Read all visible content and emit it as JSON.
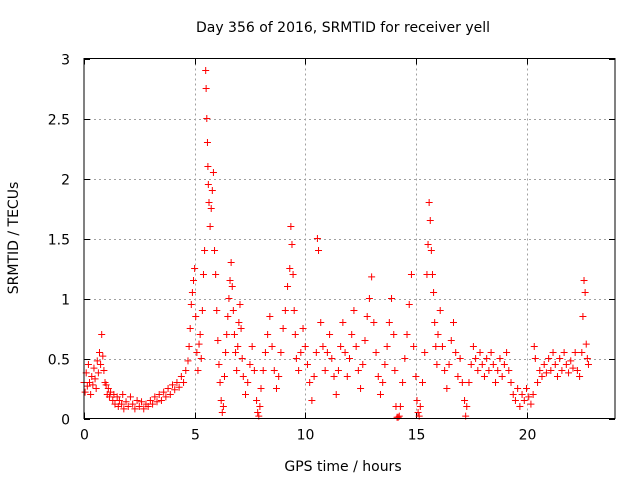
{
  "chart_data": {
    "type": "scatter",
    "title": "Day 356 of 2016, SRMTID for receiver yell",
    "xlabel": "GPS time / hours",
    "ylabel": "SRMTID / TECUs",
    "xlim": [
      0,
      24
    ],
    "ylim": [
      0,
      3
    ],
    "grid": true,
    "marker": "+",
    "color": "#ff0000",
    "x_ticks": [
      0,
      5,
      10,
      15,
      20
    ],
    "x_tick_labels": [
      "0",
      "5",
      "10",
      "15",
      "20"
    ],
    "y_ticks": [
      0,
      0.5,
      1,
      1.5,
      2,
      2.5,
      3
    ],
    "y_tick_labels": [
      "0",
      "0.5",
      "1",
      "1.5",
      "2",
      "2.5",
      "3"
    ],
    "series": [
      {
        "name": "SRMTID",
        "points": [
          [
            0.0,
            0.3
          ],
          [
            0.05,
            0.22
          ],
          [
            0.1,
            0.38
          ],
          [
            0.15,
            0.27
          ],
          [
            0.2,
            0.45
          ],
          [
            0.25,
            0.3
          ],
          [
            0.3,
            0.2
          ],
          [
            0.35,
            0.35
          ],
          [
            0.4,
            0.28
          ],
          [
            0.45,
            0.42
          ],
          [
            0.5,
            0.33
          ],
          [
            0.55,
            0.25
          ],
          [
            0.6,
            0.48
          ],
          [
            0.65,
            0.38
          ],
          [
            0.7,
            0.55
          ],
          [
            0.75,
            0.45
          ],
          [
            0.8,
            0.7
          ],
          [
            0.85,
            0.52
          ],
          [
            0.9,
            0.4
          ],
          [
            0.95,
            0.3
          ],
          [
            1.0,
            0.28
          ],
          [
            1.05,
            0.2
          ],
          [
            1.1,
            0.25
          ],
          [
            1.15,
            0.18
          ],
          [
            1.2,
            0.22
          ],
          [
            1.3,
            0.15
          ],
          [
            1.35,
            0.2
          ],
          [
            1.4,
            0.12
          ],
          [
            1.5,
            0.18
          ],
          [
            1.55,
            0.1
          ],
          [
            1.6,
            0.15
          ],
          [
            1.7,
            0.12
          ],
          [
            1.75,
            0.2
          ],
          [
            1.8,
            0.08
          ],
          [
            1.9,
            0.14
          ],
          [
            2.0,
            0.1
          ],
          [
            2.1,
            0.18
          ],
          [
            2.2,
            0.12
          ],
          [
            2.3,
            0.08
          ],
          [
            2.4,
            0.15
          ],
          [
            2.5,
            0.1
          ],
          [
            2.6,
            0.14
          ],
          [
            2.7,
            0.08
          ],
          [
            2.8,
            0.12
          ],
          [
            2.9,
            0.1
          ],
          [
            3.0,
            0.15
          ],
          [
            3.1,
            0.12
          ],
          [
            3.2,
            0.18
          ],
          [
            3.3,
            0.14
          ],
          [
            3.4,
            0.2
          ],
          [
            3.5,
            0.15
          ],
          [
            3.6,
            0.22
          ],
          [
            3.7,
            0.18
          ],
          [
            3.8,
            0.25
          ],
          [
            3.9,
            0.2
          ],
          [
            4.0,
            0.28
          ],
          [
            4.1,
            0.24
          ],
          [
            4.2,
            0.3
          ],
          [
            4.3,
            0.26
          ],
          [
            4.4,
            0.35
          ],
          [
            4.5,
            0.3
          ],
          [
            4.6,
            0.4
          ],
          [
            4.7,
            0.48
          ],
          [
            4.75,
            0.6
          ],
          [
            4.8,
            0.75
          ],
          [
            4.85,
            0.95
          ],
          [
            4.9,
            1.05
          ],
          [
            4.95,
            1.15
          ],
          [
            5.0,
            1.25
          ],
          [
            5.05,
            0.85
          ],
          [
            5.1,
            0.55
          ],
          [
            5.15,
            0.4
          ],
          [
            5.2,
            0.62
          ],
          [
            5.25,
            0.7
          ],
          [
            5.3,
            0.5
          ],
          [
            5.35,
            0.9
          ],
          [
            5.4,
            1.2
          ],
          [
            5.45,
            1.4
          ],
          [
            5.5,
            2.9
          ],
          [
            5.52,
            2.75
          ],
          [
            5.55,
            2.5
          ],
          [
            5.58,
            2.3
          ],
          [
            5.6,
            2.1
          ],
          [
            5.62,
            1.95
          ],
          [
            5.65,
            1.8
          ],
          [
            5.7,
            1.6
          ],
          [
            5.75,
            1.75
          ],
          [
            5.8,
            1.9
          ],
          [
            5.85,
            2.05
          ],
          [
            5.9,
            1.4
          ],
          [
            5.95,
            1.2
          ],
          [
            6.0,
            0.9
          ],
          [
            6.05,
            0.65
          ],
          [
            6.1,
            0.45
          ],
          [
            6.15,
            0.3
          ],
          [
            6.2,
            0.15
          ],
          [
            6.25,
            0.05
          ],
          [
            6.3,
            0.1
          ],
          [
            6.35,
            0.35
          ],
          [
            6.4,
            0.55
          ],
          [
            6.45,
            0.7
          ],
          [
            6.5,
            0.85
          ],
          [
            6.55,
            1.0
          ],
          [
            6.6,
            1.15
          ],
          [
            6.65,
            1.3
          ],
          [
            6.7,
            1.1
          ],
          [
            6.75,
            0.9
          ],
          [
            6.8,
            0.7
          ],
          [
            6.85,
            0.55
          ],
          [
            6.9,
            0.4
          ],
          [
            6.95,
            0.6
          ],
          [
            7.0,
            0.8
          ],
          [
            7.05,
            0.95
          ],
          [
            7.1,
            0.75
          ],
          [
            7.15,
            0.5
          ],
          [
            7.2,
            0.35
          ],
          [
            7.3,
            0.2
          ],
          [
            7.4,
            0.3
          ],
          [
            7.5,
            0.45
          ],
          [
            7.6,
            0.6
          ],
          [
            7.7,
            0.4
          ],
          [
            7.8,
            0.15
          ],
          [
            7.85,
            0.05
          ],
          [
            7.9,
            0.02
          ],
          [
            7.95,
            0.1
          ],
          [
            8.0,
            0.25
          ],
          [
            8.1,
            0.4
          ],
          [
            8.2,
            0.55
          ],
          [
            8.3,
            0.7
          ],
          [
            8.4,
            0.85
          ],
          [
            8.5,
            0.6
          ],
          [
            8.6,
            0.4
          ],
          [
            8.7,
            0.25
          ],
          [
            8.8,
            0.35
          ],
          [
            8.9,
            0.55
          ],
          [
            9.0,
            0.75
          ],
          [
            9.1,
            0.9
          ],
          [
            9.2,
            1.1
          ],
          [
            9.3,
            1.25
          ],
          [
            9.35,
            1.6
          ],
          [
            9.4,
            1.45
          ],
          [
            9.45,
            1.2
          ],
          [
            9.5,
            0.9
          ],
          [
            9.55,
            0.7
          ],
          [
            9.6,
            0.5
          ],
          [
            9.7,
            0.4
          ],
          [
            9.8,
            0.55
          ],
          [
            9.9,
            0.75
          ],
          [
            10.0,
            0.6
          ],
          [
            10.1,
            0.45
          ],
          [
            10.2,
            0.3
          ],
          [
            10.3,
            0.15
          ],
          [
            10.4,
            0.35
          ],
          [
            10.5,
            0.55
          ],
          [
            10.55,
            1.5
          ],
          [
            10.6,
            1.4
          ],
          [
            10.7,
            0.8
          ],
          [
            10.8,
            0.6
          ],
          [
            10.9,
            0.4
          ],
          [
            11.0,
            0.55
          ],
          [
            11.1,
            0.7
          ],
          [
            11.2,
            0.5
          ],
          [
            11.3,
            0.35
          ],
          [
            11.4,
            0.2
          ],
          [
            11.5,
            0.4
          ],
          [
            11.6,
            0.6
          ],
          [
            11.7,
            0.8
          ],
          [
            11.8,
            0.55
          ],
          [
            11.9,
            0.35
          ],
          [
            12.0,
            0.5
          ],
          [
            12.1,
            0.7
          ],
          [
            12.2,
            0.9
          ],
          [
            12.3,
            0.6
          ],
          [
            12.4,
            0.4
          ],
          [
            12.5,
            0.25
          ],
          [
            12.6,
            0.45
          ],
          [
            12.7,
            0.65
          ],
          [
            12.8,
            0.85
          ],
          [
            12.9,
            1.0
          ],
          [
            13.0,
            1.18
          ],
          [
            13.1,
            0.8
          ],
          [
            13.2,
            0.55
          ],
          [
            13.3,
            0.35
          ],
          [
            13.4,
            0.2
          ],
          [
            13.5,
            0.3
          ],
          [
            13.6,
            0.45
          ],
          [
            13.7,
            0.6
          ],
          [
            13.8,
            0.8
          ],
          [
            13.9,
            1.0
          ],
          [
            14.0,
            0.7
          ],
          [
            14.05,
            0.4
          ],
          [
            14.1,
            0.1
          ],
          [
            14.15,
            0.01
          ],
          [
            14.2,
            0.01
          ],
          [
            14.25,
            0.02
          ],
          [
            14.3,
            0.1
          ],
          [
            14.4,
            0.3
          ],
          [
            14.5,
            0.5
          ],
          [
            14.6,
            0.7
          ],
          [
            14.7,
            0.95
          ],
          [
            14.8,
            1.2
          ],
          [
            14.9,
            0.6
          ],
          [
            15.0,
            0.35
          ],
          [
            15.05,
            0.15
          ],
          [
            15.1,
            0.05
          ],
          [
            15.15,
            0.02
          ],
          [
            15.2,
            0.1
          ],
          [
            15.3,
            0.3
          ],
          [
            15.4,
            0.55
          ],
          [
            15.5,
            1.2
          ],
          [
            15.55,
            1.45
          ],
          [
            15.6,
            1.8
          ],
          [
            15.65,
            1.65
          ],
          [
            15.7,
            1.4
          ],
          [
            15.75,
            1.2
          ],
          [
            15.8,
            1.05
          ],
          [
            15.85,
            0.8
          ],
          [
            15.9,
            0.6
          ],
          [
            15.95,
            0.45
          ],
          [
            16.0,
            0.7
          ],
          [
            16.1,
            0.9
          ],
          [
            16.2,
            0.6
          ],
          [
            16.3,
            0.4
          ],
          [
            16.4,
            0.25
          ],
          [
            16.5,
            0.45
          ],
          [
            16.6,
            0.65
          ],
          [
            16.7,
            0.8
          ],
          [
            16.8,
            0.55
          ],
          [
            16.9,
            0.35
          ],
          [
            17.0,
            0.5
          ],
          [
            17.1,
            0.3
          ],
          [
            17.2,
            0.15
          ],
          [
            17.25,
            0.02
          ],
          [
            17.3,
            0.1
          ],
          [
            17.4,
            0.3
          ],
          [
            17.5,
            0.45
          ],
          [
            17.6,
            0.6
          ],
          [
            17.7,
            0.5
          ],
          [
            17.8,
            0.4
          ],
          [
            17.9,
            0.55
          ],
          [
            18.0,
            0.45
          ],
          [
            18.1,
            0.35
          ],
          [
            18.2,
            0.5
          ],
          [
            18.3,
            0.4
          ],
          [
            18.4,
            0.55
          ],
          [
            18.5,
            0.45
          ],
          [
            18.6,
            0.3
          ],
          [
            18.7,
            0.4
          ],
          [
            18.8,
            0.5
          ],
          [
            18.9,
            0.35
          ],
          [
            19.0,
            0.45
          ],
          [
            19.1,
            0.55
          ],
          [
            19.2,
            0.4
          ],
          [
            19.3,
            0.3
          ],
          [
            19.4,
            0.2
          ],
          [
            19.5,
            0.15
          ],
          [
            19.6,
            0.25
          ],
          [
            19.7,
            0.1
          ],
          [
            19.8,
            0.2
          ],
          [
            19.9,
            0.15
          ],
          [
            20.0,
            0.25
          ],
          [
            20.1,
            0.18
          ],
          [
            20.2,
            0.12
          ],
          [
            20.3,
            0.2
          ],
          [
            20.35,
            0.6
          ],
          [
            20.4,
            0.5
          ],
          [
            20.5,
            0.3
          ],
          [
            20.6,
            0.4
          ],
          [
            20.7,
            0.35
          ],
          [
            20.8,
            0.45
          ],
          [
            20.9,
            0.38
          ],
          [
            21.0,
            0.5
          ],
          [
            21.1,
            0.4
          ],
          [
            21.2,
            0.55
          ],
          [
            21.3,
            0.45
          ],
          [
            21.4,
            0.35
          ],
          [
            21.5,
            0.5
          ],
          [
            21.6,
            0.4
          ],
          [
            21.7,
            0.55
          ],
          [
            21.8,
            0.45
          ],
          [
            21.9,
            0.38
          ],
          [
            22.0,
            0.48
          ],
          [
            22.1,
            0.42
          ],
          [
            22.2,
            0.55
          ],
          [
            22.3,
            0.4
          ],
          [
            22.4,
            0.35
          ],
          [
            22.5,
            0.55
          ],
          [
            22.55,
            0.85
          ],
          [
            22.6,
            1.15
          ],
          [
            22.65,
            1.05
          ],
          [
            22.7,
            0.62
          ],
          [
            22.75,
            0.5
          ],
          [
            22.8,
            0.45
          ]
        ]
      }
    ]
  }
}
